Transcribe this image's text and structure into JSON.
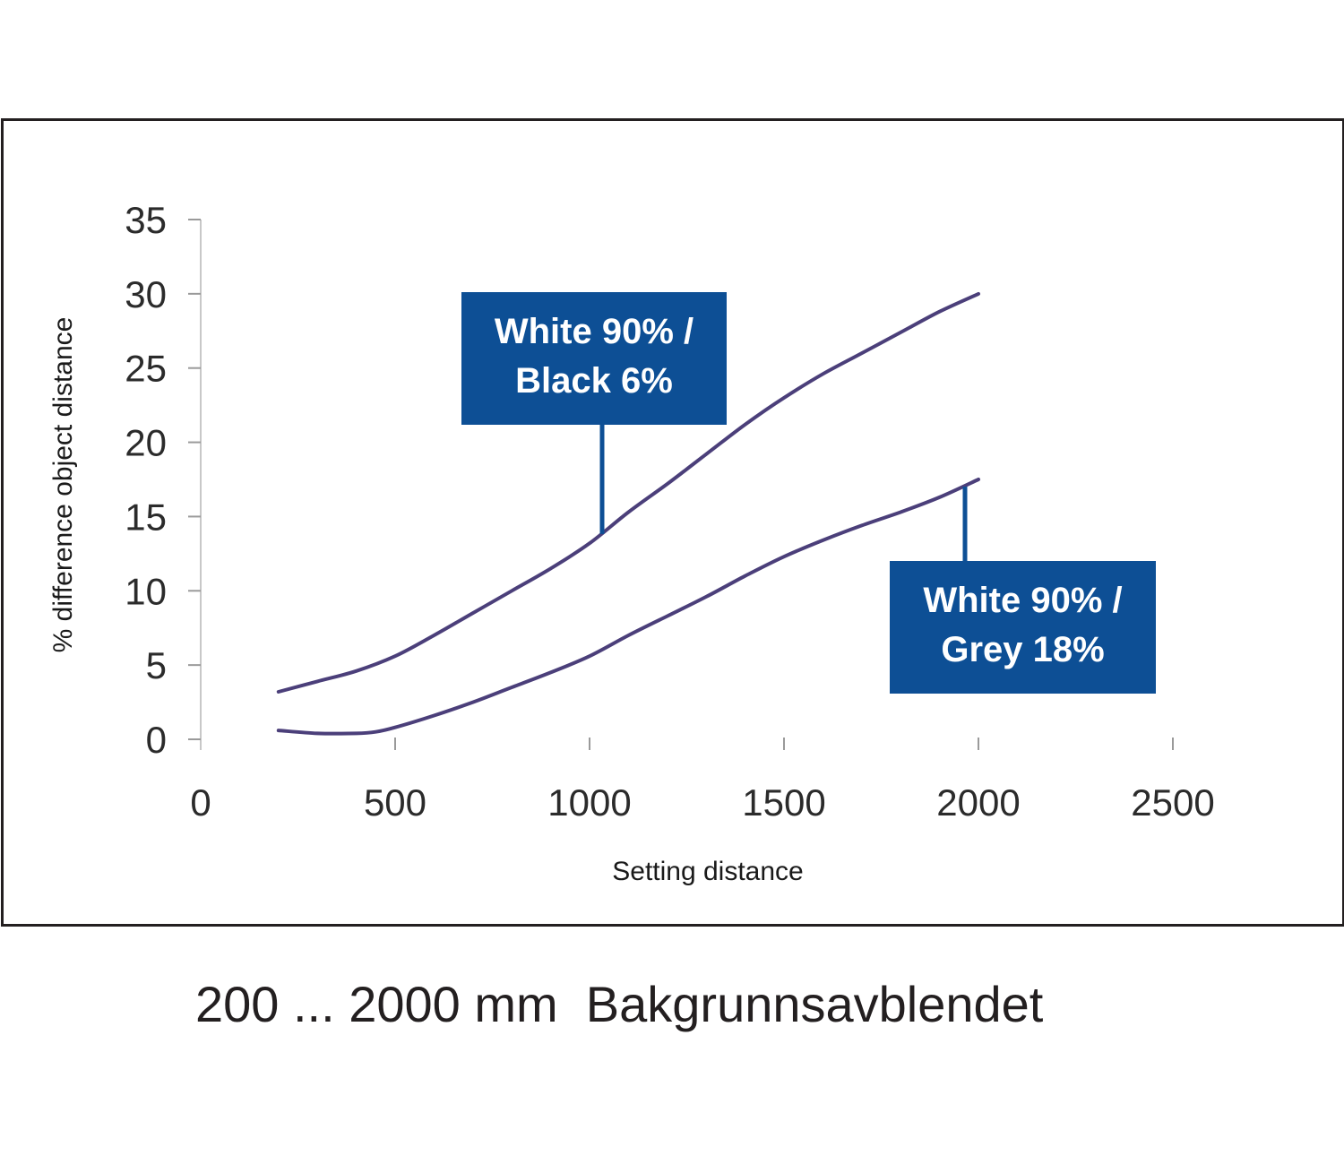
{
  "chart_data": {
    "type": "line",
    "title": "",
    "xlabel": "Setting distance",
    "ylabel": "% difference object distance",
    "xlim": [
      0,
      2500
    ],
    "ylim": [
      0,
      35
    ],
    "xticks": [
      0,
      500,
      1000,
      1500,
      2000,
      2500
    ],
    "yticks": [
      0,
      5,
      10,
      15,
      20,
      25,
      30,
      35
    ],
    "grid": false,
    "legend": "none",
    "line_color": "#4b3f7a",
    "callout_color": "#0d4f95",
    "series": [
      {
        "label_lines": [
          "White 90% /",
          "Black 6%"
        ],
        "x": [
          200,
          300,
          400,
          500,
          600,
          700,
          800,
          900,
          1000,
          1100,
          1200,
          1300,
          1400,
          1500,
          1600,
          1700,
          1800,
          1900,
          2000
        ],
        "y": [
          3.2,
          3.9,
          4.6,
          5.6,
          7.0,
          8.5,
          10.0,
          11.5,
          13.2,
          15.3,
          17.2,
          19.2,
          21.2,
          23.0,
          24.6,
          26.0,
          27.4,
          28.8,
          30.0
        ]
      },
      {
        "label_lines": [
          "White 90% /",
          "Grey 18%"
        ],
        "x": [
          200,
          300,
          400,
          450,
          500,
          600,
          700,
          800,
          900,
          1000,
          1100,
          1200,
          1300,
          1400,
          1500,
          1600,
          1700,
          1800,
          1900,
          2000
        ],
        "y": [
          0.6,
          0.4,
          0.4,
          0.5,
          0.8,
          1.6,
          2.5,
          3.5,
          4.5,
          5.6,
          7.0,
          8.3,
          9.6,
          11.0,
          12.3,
          13.4,
          14.4,
          15.3,
          16.3,
          17.5
        ]
      }
    ]
  },
  "caption": "200 ... 2000 mm  Bakgrunnsavblendet"
}
